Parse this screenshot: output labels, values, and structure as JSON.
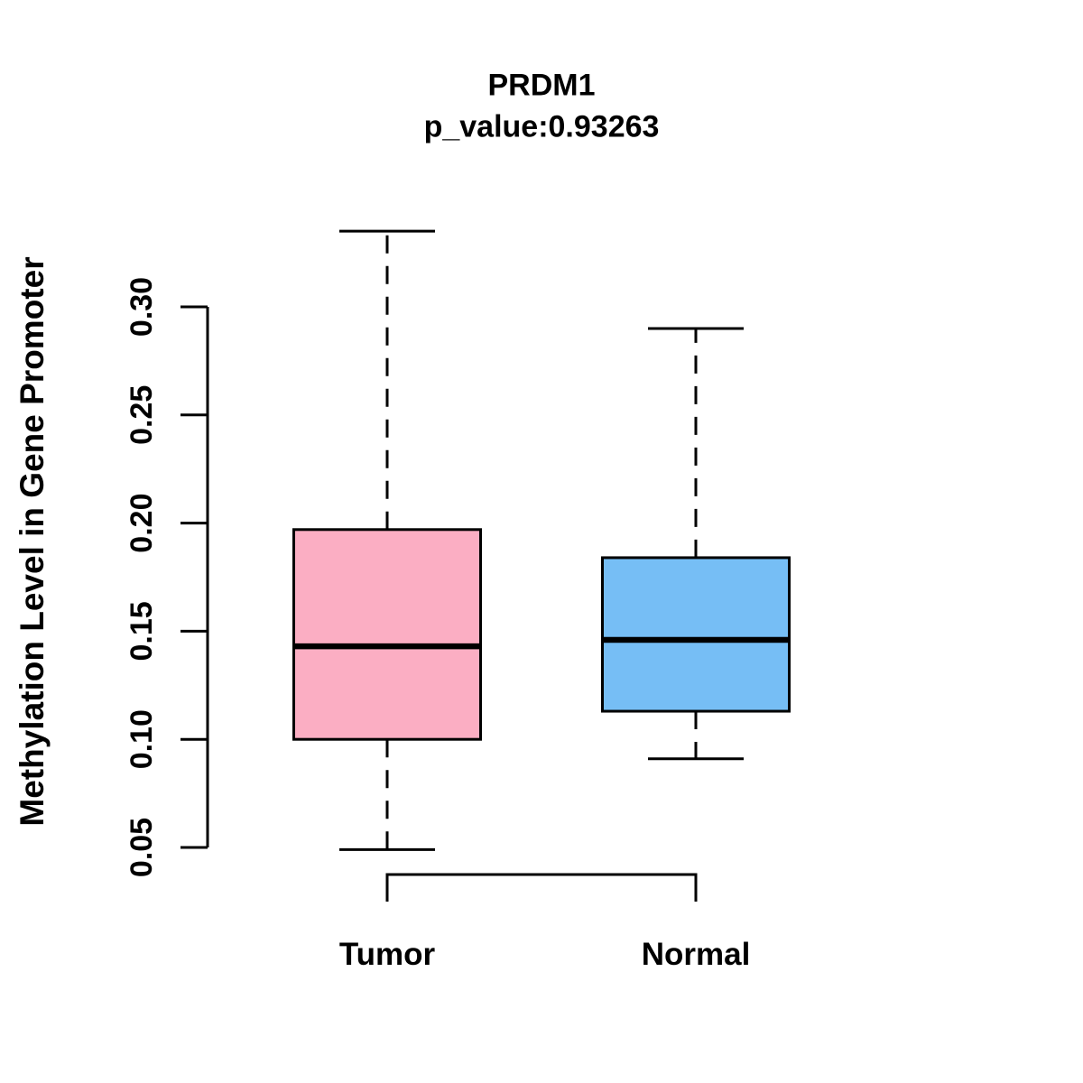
{
  "figure": {
    "background": "#FFFFFF"
  },
  "chart_data": {
    "type": "boxplot",
    "title": "PRDM1",
    "subtitle": "p_value:0.93263",
    "xlabel": "",
    "ylabel": "Methylation Level in Gene Promoter",
    "categories": [
      "Tumor",
      "Normal"
    ],
    "y_ticks": [
      0.05,
      0.1,
      0.15,
      0.2,
      0.25,
      0.3
    ],
    "ylim": [
      0.05,
      0.3
    ],
    "grid": false,
    "legend": "none",
    "line_color": "#000000",
    "series": [
      {
        "name": "Tumor",
        "whisker_low": 0.049,
        "q1": 0.1,
        "median": 0.143,
        "q3": 0.197,
        "whisker_high": 0.335,
        "fill_color": "#FBAEC3"
      },
      {
        "name": "Normal",
        "whisker_low": 0.091,
        "q1": 0.113,
        "median": 0.146,
        "q3": 0.184,
        "whisker_high": 0.29,
        "fill_color": "#76BEF5"
      }
    ],
    "comparison_bracket": {
      "between": [
        "Tumor",
        "Normal"
      ]
    }
  }
}
